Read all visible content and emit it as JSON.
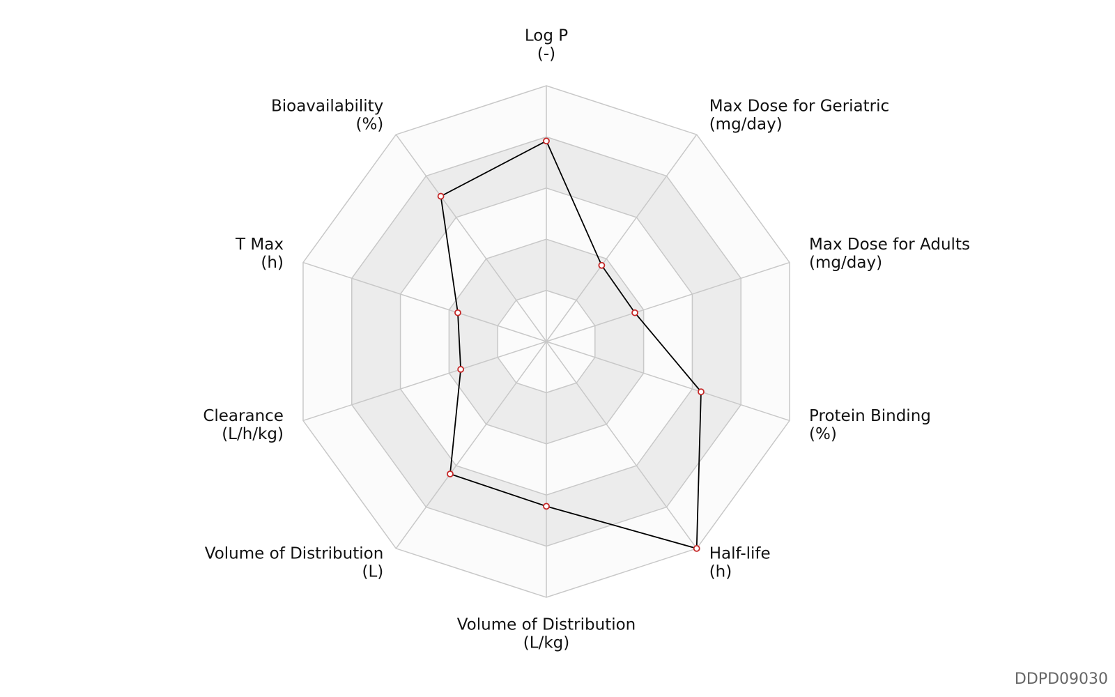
{
  "chart_data": {
    "type": "radar",
    "categories": [
      "Log P",
      "Max Dose for Geriatric",
      "Max Dose for Adults",
      "Protein Binding",
      "Half-life",
      "Volume of Distribution",
      "Volume of Distribution",
      "Clearance",
      "T Max",
      "Bioavailability"
    ],
    "units": [
      "(-)",
      "(mg/day)",
      "(mg/day)",
      "(%)",
      "(h)",
      "(L/kg)",
      "(L)",
      "(L/h/kg)",
      "(h)",
      "(%)"
    ],
    "series": [
      {
        "color": "#000000",
        "marker_color": "#c62828",
        "values": [
          3.92,
          1.84,
          1.82,
          3.18,
          5.0,
          3.22,
          3.2,
          1.76,
          1.82,
          3.51
        ]
      }
    ],
    "rlim": [
      0,
      5
    ],
    "rticks": [
      1,
      2,
      3,
      4,
      5
    ],
    "grid": true
  },
  "watermark": "DDPD09030"
}
